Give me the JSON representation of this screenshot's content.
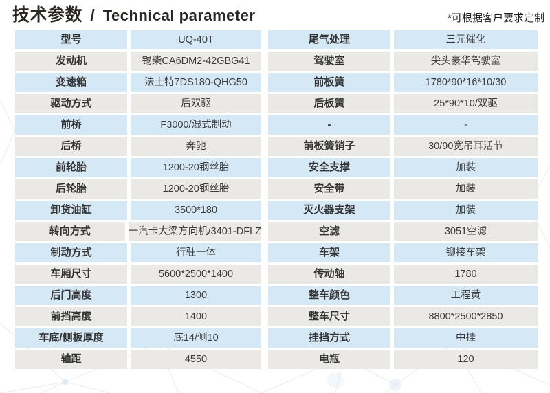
{
  "header": {
    "title_zh": "技术参数",
    "title_divider": "/",
    "title_en": "Technical parameter",
    "note": "*可根据客户要求定制"
  },
  "colors": {
    "row_blue": "#d4e8f6",
    "row_gray": "#eae9e6",
    "title": "#2b2723"
  },
  "tables": {
    "left": {
      "rows": [
        {
          "label": "型号",
          "value": "UQ-40T"
        },
        {
          "label": "发动机",
          "value": "锡柴CA6DM2-42GBG41"
        },
        {
          "label": "变速箱",
          "value": "法士特7DS180-QHG50"
        },
        {
          "label": "驱动方式",
          "value": "后双驱"
        },
        {
          "label": "前桥",
          "value": "F3000/湿式制动"
        },
        {
          "label": "后桥",
          "value": "奔驰"
        },
        {
          "label": "前轮胎",
          "value": "1200-20钢丝胎"
        },
        {
          "label": "后轮胎",
          "value": "1200-20钢丝胎"
        },
        {
          "label": "卸货油缸",
          "value": "3500*180"
        },
        {
          "label": "转向方式",
          "value": "一汽卡大梁方向机/3401-DFLZ"
        },
        {
          "label": "制动方式",
          "value": "行驻一体"
        },
        {
          "label": "车厢尺寸",
          "value": "5600*2500*1400"
        },
        {
          "label": "后门高度",
          "value": "1300"
        },
        {
          "label": "前挡高度",
          "value": "1400"
        },
        {
          "label": "车底/侧板厚度",
          "value": "底14/侧10"
        },
        {
          "label": "轴距",
          "value": "4550"
        }
      ]
    },
    "right": {
      "rows": [
        {
          "label": "尾气处理",
          "value": "三元催化"
        },
        {
          "label": "驾驶室",
          "value": "尖头豪华驾驶室"
        },
        {
          "label": "前板簧",
          "value": "1780*90*16*10/30"
        },
        {
          "label": "后板簧",
          "value": "25*90*10/双驱"
        },
        {
          "label": "-",
          "value": "-"
        },
        {
          "label": "前板簧销子",
          "value": "30/90宽吊耳活节"
        },
        {
          "label": "安全支撑",
          "value": "加装"
        },
        {
          "label": "安全带",
          "value": "加装"
        },
        {
          "label": "灭火器支架",
          "value": "加装"
        },
        {
          "label": "空滤",
          "value": "3051空滤"
        },
        {
          "label": "车架",
          "value": "铆接车架"
        },
        {
          "label": "传动轴",
          "value": "1780"
        },
        {
          "label": "整车颜色",
          "value": "工程黄"
        },
        {
          "label": "整车尺寸",
          "value": "8800*2500*2850"
        },
        {
          "label": "挂挡方式",
          "value": "中挂"
        },
        {
          "label": "电瓶",
          "value": "120"
        }
      ]
    }
  }
}
